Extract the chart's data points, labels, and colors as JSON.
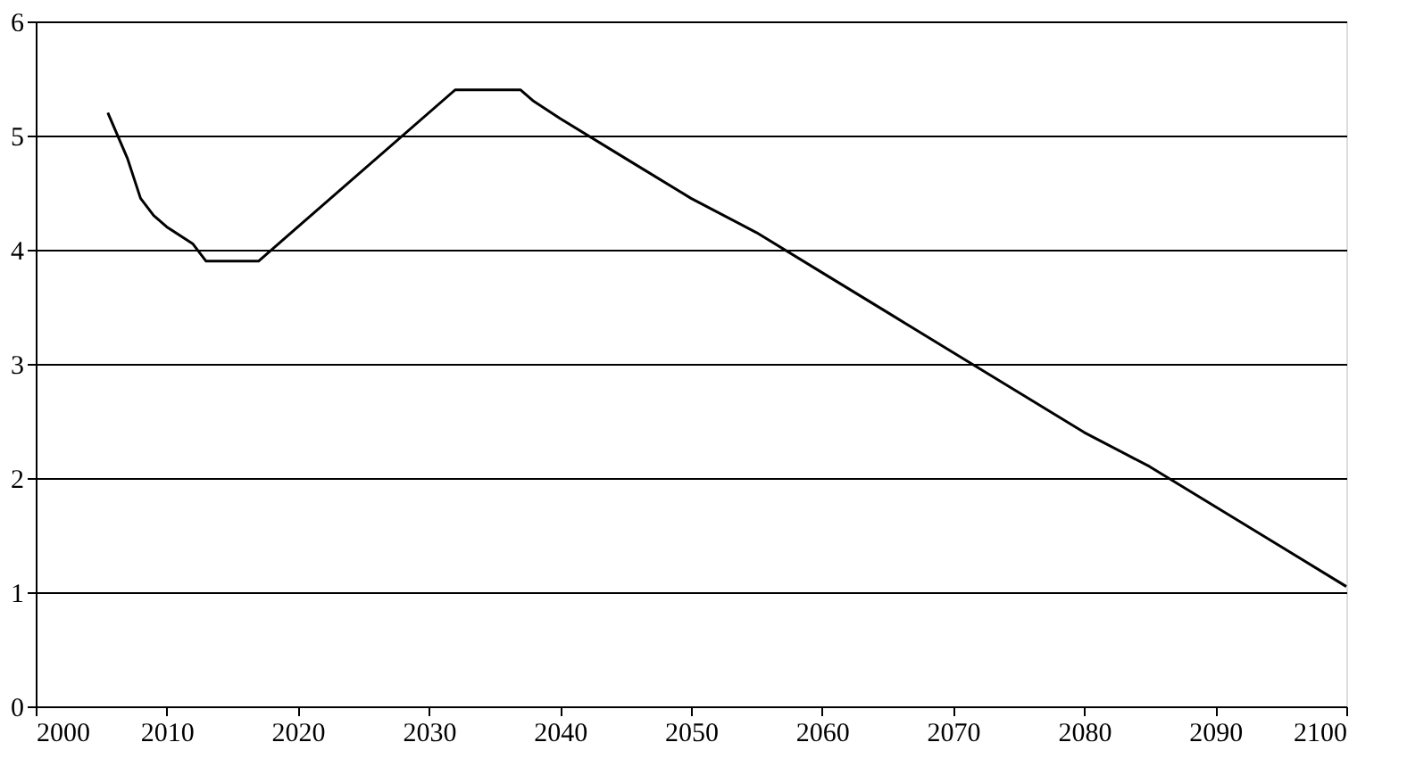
{
  "chart_data": {
    "type": "line",
    "x": [
      2005.5,
      2007,
      2008,
      2009,
      2010,
      2012,
      2013,
      2017,
      2032,
      2037,
      2038,
      2040,
      2045,
      2050,
      2055,
      2060,
      2065,
      2070,
      2075,
      2080,
      2085,
      2090,
      2095,
      2100
    ],
    "values": [
      5.2,
      4.8,
      4.45,
      4.3,
      4.2,
      4.05,
      3.9,
      3.9,
      5.4,
      5.4,
      5.3,
      5.15,
      4.8,
      4.45,
      4.15,
      3.8,
      3.45,
      3.1,
      2.75,
      2.4,
      2.1,
      1.75,
      1.4,
      1.05
    ],
    "color": "#000000",
    "xlim": [
      2000,
      2100
    ],
    "xticks": [
      2000,
      2010,
      2020,
      2030,
      2040,
      2050,
      2060,
      2070,
      2080,
      2090,
      2100
    ],
    "ylim": [
      0,
      6
    ],
    "yticks": [
      0,
      1,
      2,
      3,
      4,
      5,
      6
    ],
    "grid": "y",
    "marker": "none",
    "line_style": "solid"
  }
}
